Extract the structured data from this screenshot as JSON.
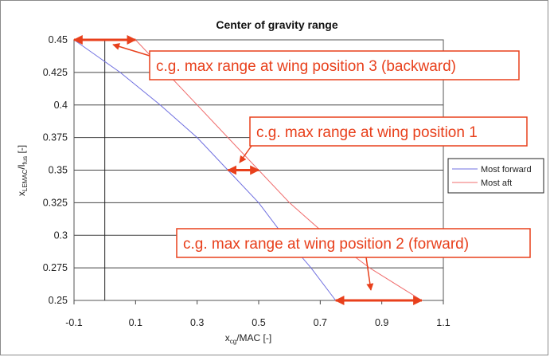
{
  "chart_data": {
    "type": "line",
    "title": "Center of gravity range",
    "xlabel": {
      "main": "x",
      "sub": "cg",
      "rest": "/MAC [-]"
    },
    "ylabel": {
      "main": "x",
      "sub": "LEMAC",
      "mid": "/l",
      "sub2": "fus",
      "rest": " [-]"
    },
    "xlim": [
      -0.1,
      1.1
    ],
    "ylim": [
      0.25,
      0.45
    ],
    "xticks": [
      -0.1,
      0.1,
      0.3,
      0.5,
      0.7,
      0.9,
      1.1
    ],
    "xtick_labels": [
      "-0.1",
      "0.1",
      "0.3",
      "0.5",
      "0.7",
      "0.9",
      "1.1"
    ],
    "yticks": [
      0.25,
      0.275,
      0.3,
      0.325,
      0.35,
      0.375,
      0.4,
      0.425,
      0.45
    ],
    "ytick_labels": [
      "0.25",
      "0.275",
      "0.3",
      "0.325",
      "0.35",
      "0.375",
      "0.4",
      "0.425",
      "0.45"
    ],
    "grid": "horizontal",
    "vertical_reference_x": 0,
    "legend_position": "right",
    "series": [
      {
        "name": "Most forward",
        "color": "#6f6fe0",
        "points": [
          [
            -0.1,
            0.45
          ],
          [
            0.05,
            0.425
          ],
          [
            0.18,
            0.4
          ],
          [
            0.3,
            0.375
          ],
          [
            0.4,
            0.35
          ],
          [
            0.5,
            0.325
          ],
          [
            0.58,
            0.3
          ],
          [
            0.67,
            0.275
          ],
          [
            0.75,
            0.25
          ]
        ]
      },
      {
        "name": "Most aft",
        "color": "#f06e6e",
        "points": [
          [
            0.1,
            0.45
          ],
          [
            0.2,
            0.425
          ],
          [
            0.3,
            0.4
          ],
          [
            0.4,
            0.375
          ],
          [
            0.5,
            0.35
          ],
          [
            0.6,
            0.325
          ],
          [
            0.72,
            0.3
          ],
          [
            0.86,
            0.275
          ],
          [
            1.03,
            0.25
          ]
        ]
      }
    ],
    "range_arrows": [
      {
        "y": 0.45,
        "x_from": -0.1,
        "x_to": 0.1
      },
      {
        "y": 0.35,
        "x_from": 0.4,
        "x_to": 0.5
      },
      {
        "y": 0.25,
        "x_from": 0.75,
        "x_to": 1.03
      }
    ],
    "annotations": [
      "c.g. max range at wing position 3 (backward)",
      "c.g. max range at wing position 1",
      "c.g. max range at wing position 2 (forward)"
    ]
  }
}
